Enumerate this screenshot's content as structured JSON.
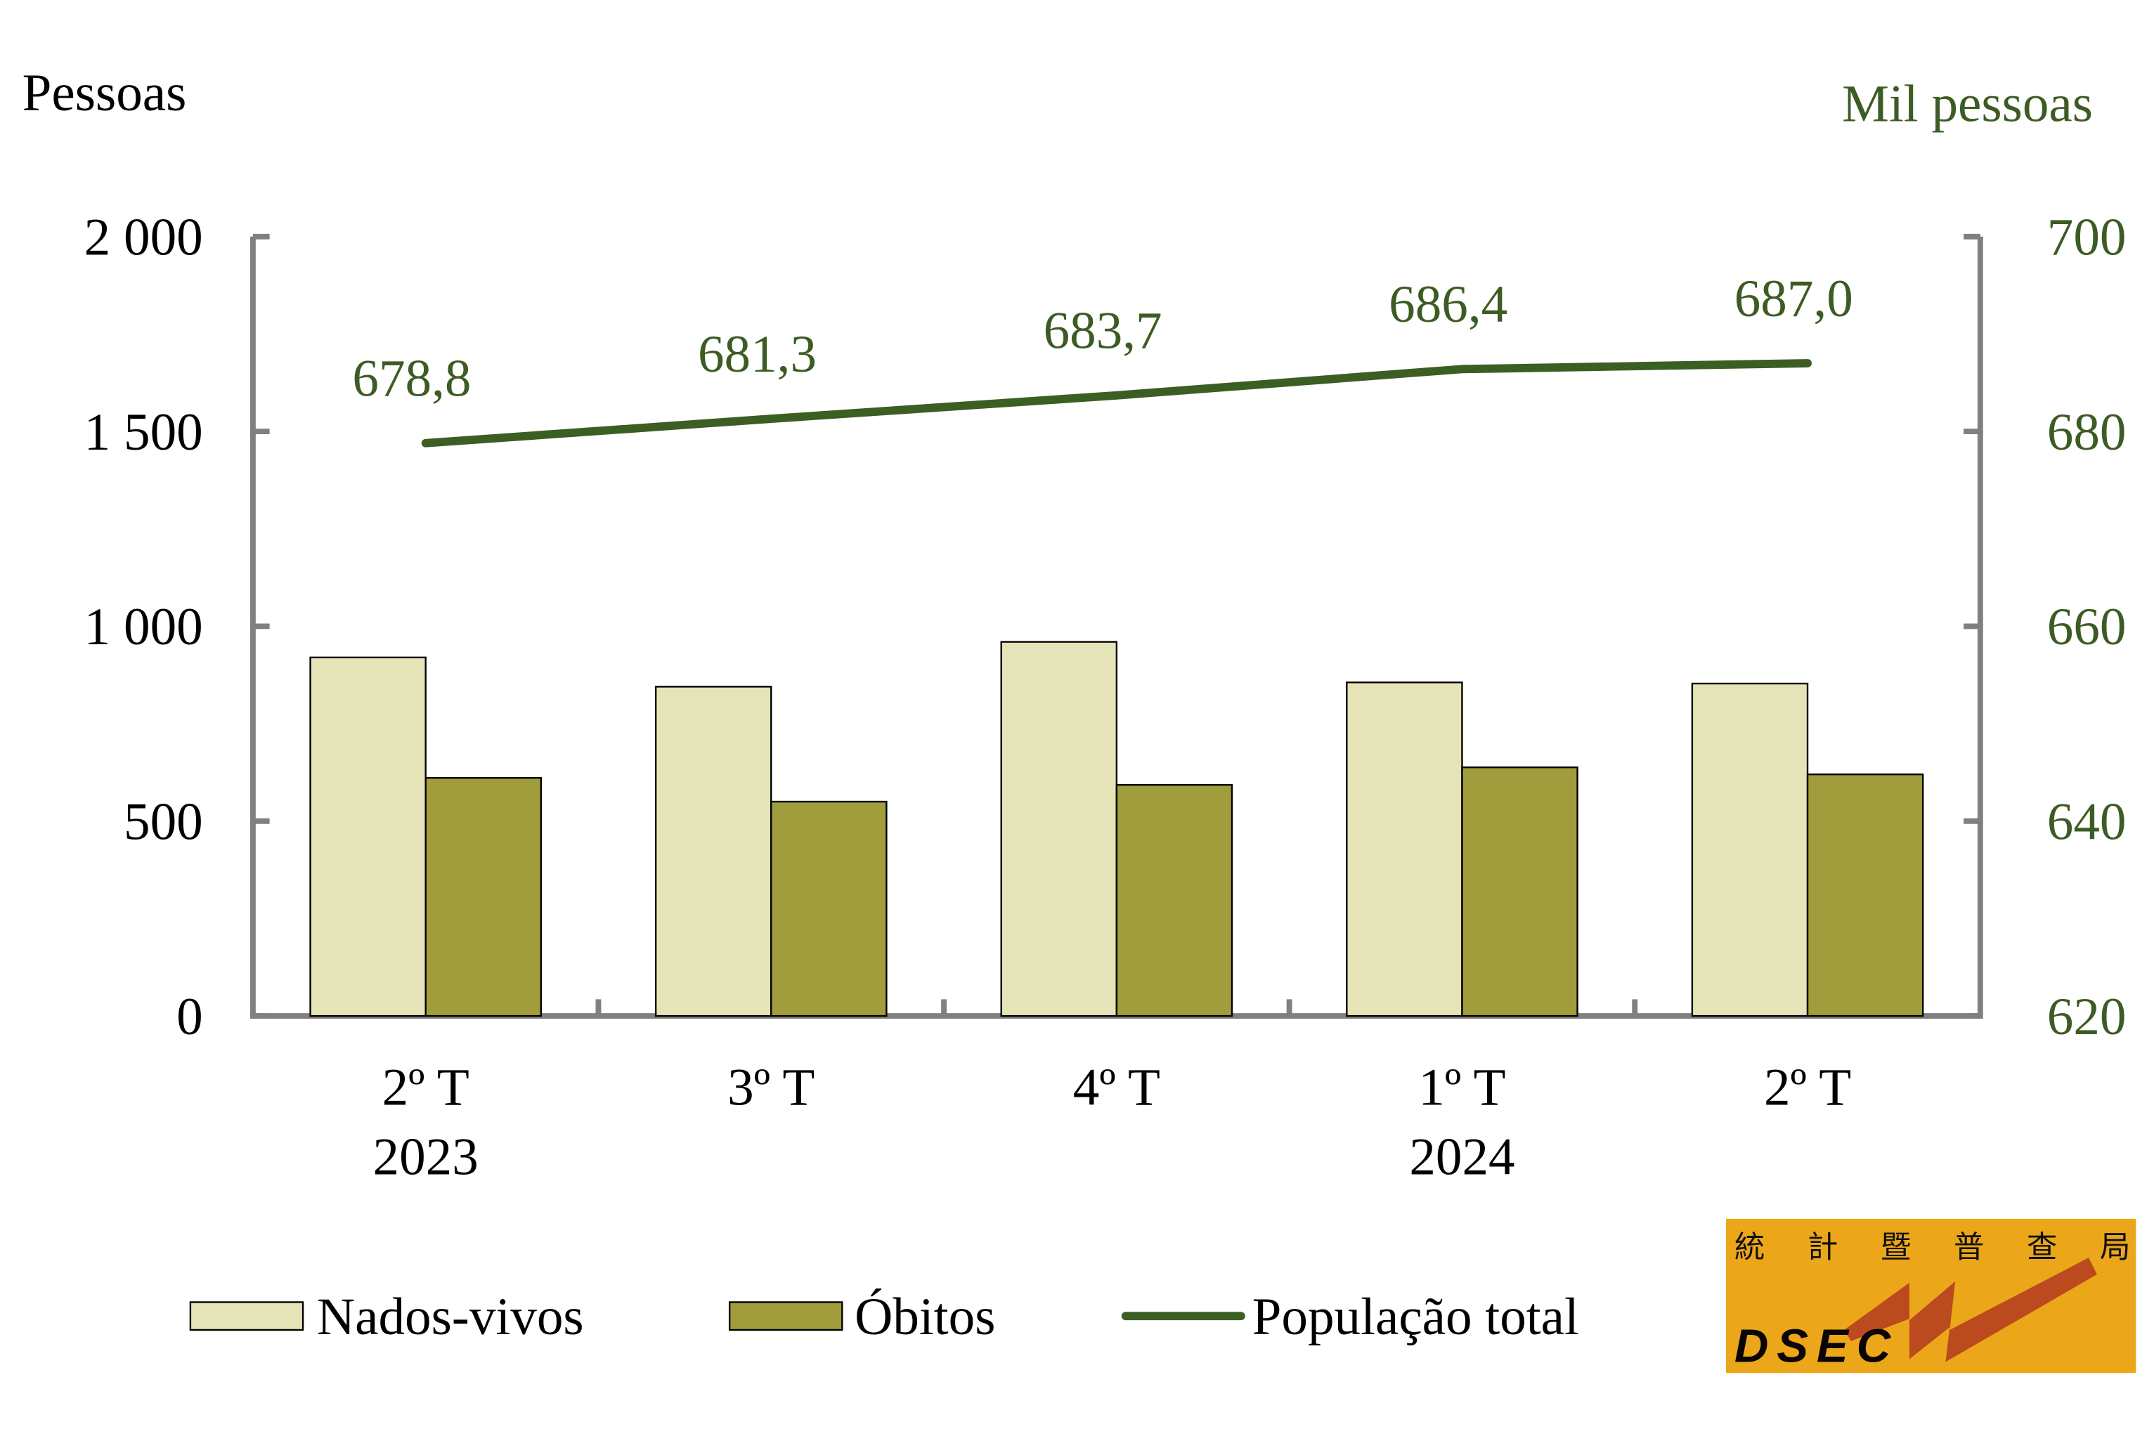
{
  "chart_data": {
    "type": "bar",
    "categories": [
      {
        "quarter": "2º T",
        "year": "2023"
      },
      {
        "quarter": "3º T",
        "year": ""
      },
      {
        "quarter": "4º T",
        "year": ""
      },
      {
        "quarter": "1º T",
        "year": "2024"
      },
      {
        "quarter": "2º T",
        "year": ""
      }
    ],
    "series": [
      {
        "name": "Nados-vivos",
        "type": "bar",
        "axis": "left",
        "color": "#e5e3b8",
        "values": [
          920,
          845,
          960,
          856,
          853
        ]
      },
      {
        "name": "Óbitos",
        "type": "bar",
        "axis": "left",
        "color": "#a19d3c",
        "values": [
          611,
          550,
          593,
          638,
          620
        ]
      },
      {
        "name": "População total",
        "type": "line",
        "axis": "right",
        "color": "#3b5e22",
        "values": [
          678.8,
          681.3,
          683.7,
          686.4,
          687.0
        ],
        "labels": [
          "678,8",
          "681,3",
          "683,7",
          "686,4",
          "687,0"
        ]
      }
    ],
    "ylabel": "Pessoas",
    "y2label": "Mil pessoas",
    "ylim": [
      0,
      2000
    ],
    "y2lim": [
      620,
      700
    ],
    "yticks": [
      {
        "v": 0,
        "label": "0"
      },
      {
        "v": 500,
        "label": "500"
      },
      {
        "v": 1000,
        "label": "1 000"
      },
      {
        "v": 1500,
        "label": "1 500"
      },
      {
        "v": 2000,
        "label": "2 000"
      }
    ],
    "y2ticks": [
      {
        "v": 620,
        "label": "620"
      },
      {
        "v": 640,
        "label": "640"
      },
      {
        "v": 660,
        "label": "660"
      },
      {
        "v": 680,
        "label": "680"
      },
      {
        "v": 700,
        "label": "700"
      }
    ],
    "grid": false,
    "legend_placement": "bottom"
  },
  "logo": {
    "chinese": "統計暨普查局",
    "acronym": "DSEC"
  },
  "colors": {
    "axis": "#808080",
    "green_text": "#3d5c24",
    "logo_bg": "#eba719",
    "logo_mark": "#bb4a1f"
  }
}
